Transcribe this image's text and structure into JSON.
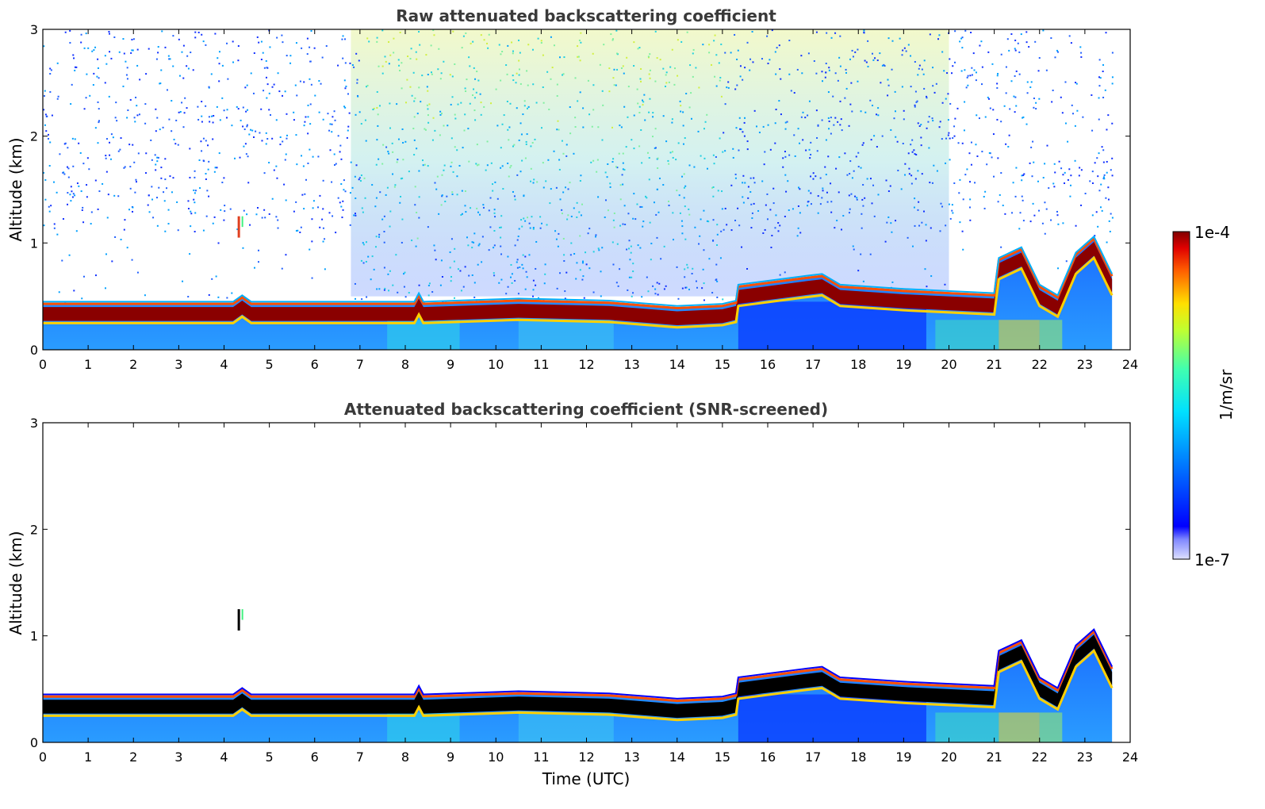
{
  "chart_data": [
    {
      "type": "heatmap",
      "title": "Raw attenuated backscattering coefficient",
      "xlabel": "",
      "ylabel": "Altitude (km)",
      "xlim": [
        0,
        24
      ],
      "ylim": [
        0,
        3
      ],
      "xticks": [
        "0",
        "1",
        "2",
        "3",
        "4",
        "5",
        "6",
        "7",
        "8",
        "9",
        "10",
        "11",
        "12",
        "13",
        "14",
        "15",
        "16",
        "17",
        "18",
        "19",
        "20",
        "21",
        "22",
        "23",
        "24"
      ],
      "yticks": [
        "0",
        "1",
        "2",
        "3"
      ],
      "layer_top_km": [
        {
          "t": 0,
          "z": 0.44
        },
        {
          "t": 4.2,
          "z": 0.44
        },
        {
          "t": 4.4,
          "z": 0.5
        },
        {
          "t": 4.6,
          "z": 0.44
        },
        {
          "t": 8.2,
          "z": 0.44
        },
        {
          "t": 8.3,
          "z": 0.52
        },
        {
          "t": 8.4,
          "z": 0.44
        },
        {
          "t": 10.5,
          "z": 0.47
        },
        {
          "t": 12.5,
          "z": 0.45
        },
        {
          "t": 14,
          "z": 0.4
        },
        {
          "t": 15.0,
          "z": 0.42
        },
        {
          "t": 15.3,
          "z": 0.45
        },
        {
          "t": 15.35,
          "z": 0.6
        },
        {
          "t": 16.8,
          "z": 0.68
        },
        {
          "t": 17.2,
          "z": 0.7
        },
        {
          "t": 17.6,
          "z": 0.6
        },
        {
          "t": 19.0,
          "z": 0.56
        },
        {
          "t": 21.0,
          "z": 0.52
        },
        {
          "t": 21.1,
          "z": 0.85
        },
        {
          "t": 21.6,
          "z": 0.95
        },
        {
          "t": 22.0,
          "z": 0.6
        },
        {
          "t": 22.4,
          "z": 0.5
        },
        {
          "t": 22.8,
          "z": 0.9
        },
        {
          "t": 23.2,
          "z": 1.05
        },
        {
          "t": 23.6,
          "z": 0.7
        }
      ],
      "data_end_hour": 23.6,
      "colorscale": "jet",
      "clim": [
        "1e-7",
        "1e-4"
      ]
    },
    {
      "type": "heatmap",
      "title": "Attenuated backscattering coefficient (SNR-screened)",
      "xlabel": "Time (UTC)",
      "ylabel": "Altitude (km)",
      "xlim": [
        0,
        24
      ],
      "ylim": [
        0,
        3
      ],
      "xticks": [
        "0",
        "1",
        "2",
        "3",
        "4",
        "5",
        "6",
        "7",
        "8",
        "9",
        "10",
        "11",
        "12",
        "13",
        "14",
        "15",
        "16",
        "17",
        "18",
        "19",
        "20",
        "21",
        "22",
        "23",
        "24"
      ],
      "yticks": [
        "0",
        "1",
        "2",
        "3"
      ],
      "isolated_feature": {
        "t": 4.3,
        "z_low": 1.05,
        "z_high": 1.25
      },
      "data_end_hour": 23.6
    }
  ],
  "colorbar": {
    "label": "1/m/sr",
    "max_label": "1e-4",
    "min_label": "1e-7"
  }
}
